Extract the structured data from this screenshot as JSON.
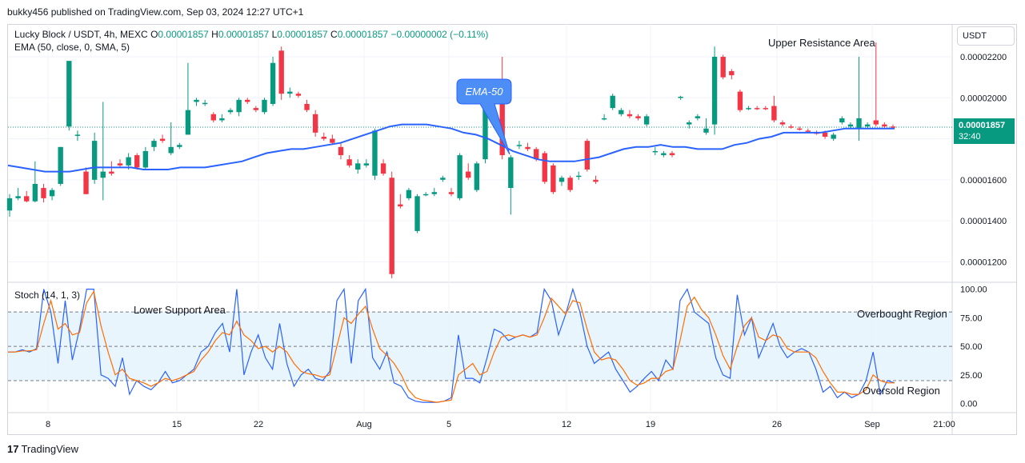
{
  "header": {
    "publisher": "bukky456 published on TradingView.com, Sep 03, 2024 12:27 UTC+1"
  },
  "legend": {
    "symbol": "Lucky Block / USDT, 4h, MEXC",
    "open_label": "O",
    "open": "0.00001857",
    "high_label": "H",
    "high": "0.00001857",
    "low_label": "L",
    "low": "0.00001857",
    "close_label": "C",
    "close": "0.00001857",
    "change": "−0.00000002 (−0.11%)",
    "ema": "EMA (50, close, 0, SMA, 5)",
    "stoch": "Stoch (14, 1, 3)"
  },
  "toolbar": {
    "currency": "USDT"
  },
  "last_price": {
    "price": "0.00001857",
    "countdown": "32:40"
  },
  "brand": {
    "logo": "17",
    "name": "TradingView"
  },
  "annotations": {
    "upper_resistance": "Upper Resistance Area",
    "ema_callout": "EMA-50",
    "lower_support": "Lower Support Area",
    "overbought": "Overbought Region",
    "oversold": "Oversold Region"
  },
  "colors": {
    "up": "#089981",
    "down": "#f23645",
    "ema": "#2962ff",
    "stoch_k": "#2962ff",
    "stoch_d": "#ff6d00",
    "band": "#e3f2fd",
    "callout": "#4c8df6"
  },
  "chart_data": [
    {
      "type": "candlestick",
      "title": "Lucky Block / USDT, 4h, MEXC",
      "x_ticks": [
        "8",
        "15",
        "22",
        "Aug",
        "5",
        "12",
        "19",
        "26",
        "Sep",
        "21:00"
      ],
      "y_ticks": [
        "0.00002200",
        "0.00002000",
        "0.00001600",
        "0.00001400",
        "0.00001200"
      ],
      "ylim": [
        1.1e-05,
        2.36e-05
      ],
      "last_price": 1.857e-05,
      "grid": true,
      "candles": [
        [
          1.45e-05,
          1.53e-05,
          1.42e-05,
          1.51e-05
        ],
        [
          1.51e-05,
          1.56e-05,
          1.5e-05,
          1.52e-05
        ],
        [
          1.52e-05,
          1.545e-05,
          1.49e-05,
          1.495e-05
        ],
        [
          1.495e-05,
          1.69e-05,
          1.49e-05,
          1.58e-05
        ],
        [
          1.56e-05,
          1.58e-05,
          1.49e-05,
          1.51e-05
        ],
        [
          1.52e-05,
          1.56e-05,
          1.5e-05,
          1.55e-05
        ],
        [
          1.58e-05,
          1.76e-05,
          1.57e-05,
          1.76e-05
        ],
        [
          1.86e-05,
          2.18e-05,
          1.84e-05,
          2.18e-05
        ],
        [
          1.82e-05,
          1.84e-05,
          1.79e-05,
          1.82e-05
        ],
        [
          1.64e-05,
          1.66e-05,
          1.53e-05,
          1.53e-05
        ],
        [
          1.6e-05,
          1.83e-05,
          1.58e-05,
          1.79e-05
        ],
        [
          1.61e-05,
          1.98e-05,
          1.5e-05,
          1.64e-05
        ],
        [
          1.64e-05,
          1.69e-05,
          1.62e-05,
          1.63e-05
        ],
        [
          1.68e-05,
          1.7e-05,
          1.66e-05,
          1.67e-05
        ],
        [
          1.67e-05,
          1.73e-05,
          1.65e-05,
          1.71e-05
        ],
        [
          1.72e-05,
          1.73e-05,
          1.65e-05,
          1.66e-05
        ],
        [
          1.66e-05,
          1.76e-05,
          1.65e-05,
          1.74e-05
        ],
        [
          1.76e-05,
          1.8e-05,
          1.74e-05,
          1.79e-05
        ],
        [
          1.8e-05,
          1.82e-05,
          1.78e-05,
          1.79e-05
        ],
        [
          1.73e-05,
          1.88e-05,
          1.72e-05,
          1.76e-05
        ],
        [
          1.76e-05,
          1.78e-05,
          1.75e-05,
          1.77e-05
        ],
        [
          1.82e-05,
          2.17e-05,
          1.82e-05,
          1.94e-05
        ],
        [
          1.98e-05,
          2e-05,
          1.96e-05,
          1.99e-05
        ],
        [
          1.97e-05,
          1.99e-05,
          1.96e-05,
          1.975e-05
        ],
        [
          1.92e-05,
          1.93e-05,
          1.88e-05,
          1.89e-05
        ],
        [
          1.89e-05,
          1.92e-05,
          1.88e-05,
          1.9e-05
        ],
        [
          1.93e-05,
          1.95e-05,
          1.92e-05,
          1.94e-05
        ],
        [
          1.93e-05,
          2e-05,
          1.91e-05,
          1.99e-05
        ],
        [
          1.99e-05,
          2e-05,
          1.97e-05,
          1.98e-05
        ],
        [
          1.95e-05,
          1.96e-05,
          1.93e-05,
          1.94e-05
        ],
        [
          1.93e-05,
          2e-05,
          1.92e-05,
          1.99e-05
        ],
        [
          1.97e-05,
          2.2e-05,
          1.96e-05,
          2.17e-05
        ],
        [
          2.23e-05,
          2.25e-05,
          1.99e-05,
          2.02e-05
        ],
        [
          2.02e-05,
          2.05e-05,
          2e-05,
          2.03e-05
        ],
        [
          2.02e-05,
          2.03e-05,
          2e-05,
          2.01e-05
        ],
        [
          1.97e-05,
          1.99e-05,
          1.93e-05,
          1.94e-05
        ],
        [
          1.92e-05,
          1.94e-05,
          1.81e-05,
          1.83e-05
        ],
        [
          1.81e-05,
          1.83e-05,
          1.79e-05,
          1.8e-05
        ],
        [
          1.8e-05,
          1.82e-05,
          1.77e-05,
          1.78e-05
        ],
        [
          1.76e-05,
          1.78e-05,
          1.7e-05,
          1.72e-05
        ],
        [
          1.7e-05,
          1.72e-05,
          1.66e-05,
          1.67e-05
        ],
        [
          1.65e-05,
          1.7e-05,
          1.63e-05,
          1.68e-05
        ],
        [
          1.67e-05,
          1.7e-05,
          1.66e-05,
          1.68e-05
        ],
        [
          1.62e-05,
          1.85e-05,
          1.6e-05,
          1.84e-05
        ],
        [
          1.68e-05,
          1.7e-05,
          1.62e-05,
          1.63e-05
        ],
        [
          1.61e-05,
          1.64e-05,
          1.12e-05,
          1.14e-05
        ],
        [
          1.48e-05,
          1.53e-05,
          1.46e-05,
          1.47e-05
        ],
        [
          1.51e-05,
          1.56e-05,
          1.5e-05,
          1.55e-05
        ],
        [
          1.35e-05,
          1.53e-05,
          1.34e-05,
          1.52e-05
        ],
        [
          1.53e-05,
          1.54e-05,
          1.52e-05,
          1.53e-05
        ],
        [
          1.53e-05,
          1.56e-05,
          1.52e-05,
          1.54e-05
        ],
        [
          1.6e-05,
          1.62e-05,
          1.59e-05,
          1.61e-05
        ],
        [
          1.54e-05,
          1.56e-05,
          1.52e-05,
          1.53e-05
        ],
        [
          1.51e-05,
          1.73e-05,
          1.5e-05,
          1.72e-05
        ],
        [
          1.64e-05,
          1.68e-05,
          1.6e-05,
          1.61e-05
        ],
        [
          1.55e-05,
          1.69e-05,
          1.54e-05,
          1.68e-05
        ],
        [
          1.7e-05,
          1.96e-05,
          1.68e-05,
          1.95e-05
        ],
        [
          1.97e-05,
          1.99e-05,
          1.95e-05,
          1.98e-05
        ],
        [
          1.98e-05,
          2.2e-05,
          1.7e-05,
          1.72e-05
        ],
        [
          1.56e-05,
          1.72e-05,
          1.43e-05,
          1.71e-05
        ],
        [
          1.77e-05,
          1.79e-05,
          1.75e-05,
          1.77e-05
        ],
        [
          1.76e-05,
          1.78e-05,
          1.74e-05,
          1.75e-05
        ],
        [
          1.75e-05,
          1.76e-05,
          1.69e-05,
          1.7e-05
        ],
        [
          1.73e-05,
          1.74e-05,
          1.58e-05,
          1.59e-05
        ],
        [
          1.67e-05,
          1.68e-05,
          1.53e-05,
          1.54e-05
        ],
        [
          1.59e-05,
          1.62e-05,
          1.57e-05,
          1.61e-05
        ],
        [
          1.61e-05,
          1.62e-05,
          1.54e-05,
          1.55e-05
        ],
        [
          1.62e-05,
          1.64e-05,
          1.6e-05,
          1.62e-05
        ],
        [
          1.79e-05,
          1.8e-05,
          1.64e-05,
          1.65e-05
        ],
        [
          1.6e-05,
          1.62e-05,
          1.58e-05,
          1.59e-05
        ],
        [
          1.9e-05,
          1.92e-05,
          1.89e-05,
          1.9e-05
        ],
        [
          1.95e-05,
          2.02e-05,
          1.94e-05,
          2.01e-05
        ],
        [
          1.92e-05,
          1.95e-05,
          1.91e-05,
          1.94e-05
        ],
        [
          1.92e-05,
          1.94e-05,
          1.9e-05,
          1.91e-05
        ],
        [
          1.91e-05,
          1.92e-05,
          1.89e-05,
          1.9e-05
        ],
        [
          1.87e-05,
          1.92e-05,
          1.86e-05,
          1.91e-05
        ],
        [
          1.74e-05,
          1.76e-05,
          1.72e-05,
          1.74e-05
        ],
        [
          1.72e-05,
          1.74e-05,
          1.71e-05,
          1.73e-05
        ],
        [
          1.73e-05,
          1.74e-05,
          1.71e-05,
          1.72e-05
        ],
        [
          2e-05,
          2.01e-05,
          1.99e-05,
          2.005e-05
        ],
        [
          1.87e-05,
          1.89e-05,
          1.85e-05,
          1.88e-05
        ],
        [
          1.9e-05,
          1.92e-05,
          1.89e-05,
          1.91e-05
        ],
        [
          1.83e-05,
          1.9e-05,
          1.82e-05,
          1.85e-05
        ],
        [
          1.87e-05,
          2.25e-05,
          1.82e-05,
          2.2e-05
        ],
        [
          2.2e-05,
          2.21e-05,
          2.09e-05,
          2.1e-05
        ],
        [
          2.13e-05,
          2.14e-05,
          2.09e-05,
          2.11e-05
        ],
        [
          2.03e-05,
          2.04e-05,
          1.93e-05,
          1.94e-05
        ],
        [
          1.95e-05,
          1.96e-05,
          1.94e-05,
          1.95e-05
        ],
        [
          1.95e-05,
          1.96e-05,
          1.94e-05,
          1.945e-05
        ],
        [
          1.95e-05,
          1.96e-05,
          1.94e-05,
          1.945e-05
        ],
        [
          1.96e-05,
          2.01e-05,
          1.88e-05,
          1.89e-05
        ],
        [
          1.88e-05,
          1.89e-05,
          1.86e-05,
          1.87e-05
        ],
        [
          1.86e-05,
          1.87e-05,
          1.85e-05,
          1.855e-05
        ],
        [
          1.85e-05,
          1.86e-05,
          1.84e-05,
          1.845e-05
        ],
        [
          1.84e-05,
          1.85e-05,
          1.83e-05,
          1.835e-05
        ],
        [
          1.83e-05,
          1.84e-05,
          1.82e-05,
          1.825e-05
        ],
        [
          1.83e-05,
          1.84e-05,
          1.8e-05,
          1.81e-05
        ],
        [
          1.8e-05,
          1.83e-05,
          1.79e-05,
          1.82e-05
        ],
        [
          1.88e-05,
          1.91e-05,
          1.87e-05,
          1.9e-05
        ],
        [
          1.86e-05,
          1.88e-05,
          1.85e-05,
          1.87e-05
        ],
        [
          1.85e-05,
          2.2e-05,
          1.79e-05,
          1.9e-05
        ],
        [
          1.86e-05,
          1.88e-05,
          1.85e-05,
          1.87e-05
        ],
        [
          1.89e-05,
          2.27e-05,
          1.86e-05,
          1.87e-05
        ],
        [
          1.87e-05,
          1.88e-05,
          1.85e-05,
          1.86e-05
        ],
        [
          1.86e-05,
          1.87e-05,
          1.85e-05,
          1.857e-05
        ]
      ],
      "ema50": [
        1.67e-05,
        1.66e-05,
        1.65e-05,
        1.64e-05,
        1.64e-05,
        1.64e-05,
        1.65e-05,
        1.66e-05,
        1.66e-05,
        1.66e-05,
        1.66e-05,
        1.65e-05,
        1.65e-05,
        1.65e-05,
        1.66e-05,
        1.66e-05,
        1.66e-05,
        1.67e-05,
        1.68e-05,
        1.69e-05,
        1.71e-05,
        1.73e-05,
        1.74e-05,
        1.75e-05,
        1.75e-05,
        1.76e-05,
        1.77e-05,
        1.78e-05,
        1.8e-05,
        1.82e-05,
        1.84e-05,
        1.86e-05,
        1.87e-05,
        1.87e-05,
        1.87e-05,
        1.86e-05,
        1.85e-05,
        1.83e-05,
        1.82e-05,
        1.8e-05,
        1.77e-05,
        1.74e-05,
        1.72e-05,
        1.7e-05,
        1.69e-05,
        1.69e-05,
        1.69e-05,
        1.7e-05,
        1.71e-05,
        1.73e-05,
        1.75e-05,
        1.76e-05,
        1.76e-05,
        1.77e-05,
        1.76e-05,
        1.76e-05,
        1.75e-05,
        1.75e-05,
        1.75e-05,
        1.77e-05,
        1.78e-05,
        1.8e-05,
        1.81e-05,
        1.83e-05,
        1.83e-05,
        1.83e-05,
        1.83e-05,
        1.84e-05,
        1.85e-05,
        1.85e-05,
        1.85e-05,
        1.85e-05,
        1.85e-05
      ],
      "ema_label": "EMA (50, close, 0, SMA, 5)"
    },
    {
      "type": "line",
      "title": "Stoch (14, 1, 3)",
      "y_ticks": [
        100,
        75,
        50,
        25,
        0
      ],
      "ylim": [
        -8,
        106
      ],
      "levels": {
        "upper": 80,
        "middle": 50,
        "lower": 20
      },
      "series": [
        {
          "name": "%K",
          "values": [
            45,
            45,
            47,
            45,
            48,
            100,
            80,
            35,
            90,
            38,
            65,
            100,
            100,
            25,
            22,
            15,
            40,
            8,
            20,
            15,
            12,
            18,
            28,
            18,
            20,
            25,
            30,
            45,
            50,
            62,
            70,
            45,
            100,
            25,
            45,
            60,
            40,
            30,
            70,
            35,
            15,
            25,
            30,
            22,
            20,
            28,
            90,
            100,
            35,
            90,
            100,
            40,
            30,
            45,
            18,
            15,
            5,
            2,
            1,
            1,
            1,
            2,
            5,
            60,
            22,
            22,
            18,
            40,
            65,
            62,
            55,
            58,
            60,
            58,
            62,
            100,
            90,
            60,
            78,
            100,
            80,
            50,
            35,
            40,
            45,
            30,
            20,
            10,
            15,
            22,
            28,
            20,
            38,
            30,
            90,
            100,
            80,
            75,
            70,
            40,
            25,
            22,
            95,
            60,
            75,
            40,
            55,
            70,
            50,
            40,
            45,
            48,
            45,
            30,
            10,
            15,
            5,
            10,
            5,
            8,
            20,
            45,
            8,
            20,
            18
          ],
          "color": "#2962ff"
        },
        {
          "name": "%D",
          "values": [
            45,
            45,
            46,
            46,
            47,
            70,
            90,
            65,
            70,
            60,
            62,
            88,
            98,
            68,
            45,
            25,
            30,
            22,
            20,
            18,
            15,
            18,
            22,
            20,
            22,
            25,
            28,
            38,
            45,
            55,
            62,
            60,
            72,
            60,
            55,
            48,
            50,
            45,
            50,
            45,
            35,
            28,
            26,
            25,
            23,
            25,
            50,
            75,
            70,
            78,
            85,
            65,
            48,
            42,
            35,
            25,
            12,
            5,
            3,
            2,
            1,
            2,
            3,
            25,
            30,
            35,
            25,
            28,
            45,
            58,
            60,
            58,
            60,
            58,
            60,
            75,
            92,
            85,
            78,
            90,
            88,
            65,
            45,
            38,
            40,
            38,
            30,
            20,
            16,
            18,
            22,
            22,
            28,
            30,
            55,
            85,
            93,
            82,
            75,
            60,
            42,
            30,
            50,
            68,
            75,
            58,
            55,
            60,
            58,
            48,
            45,
            45,
            45,
            40,
            28,
            18,
            10,
            10,
            8,
            8,
            12,
            25,
            20,
            18,
            18
          ],
          "color": "#ff6d00"
        }
      ]
    }
  ]
}
